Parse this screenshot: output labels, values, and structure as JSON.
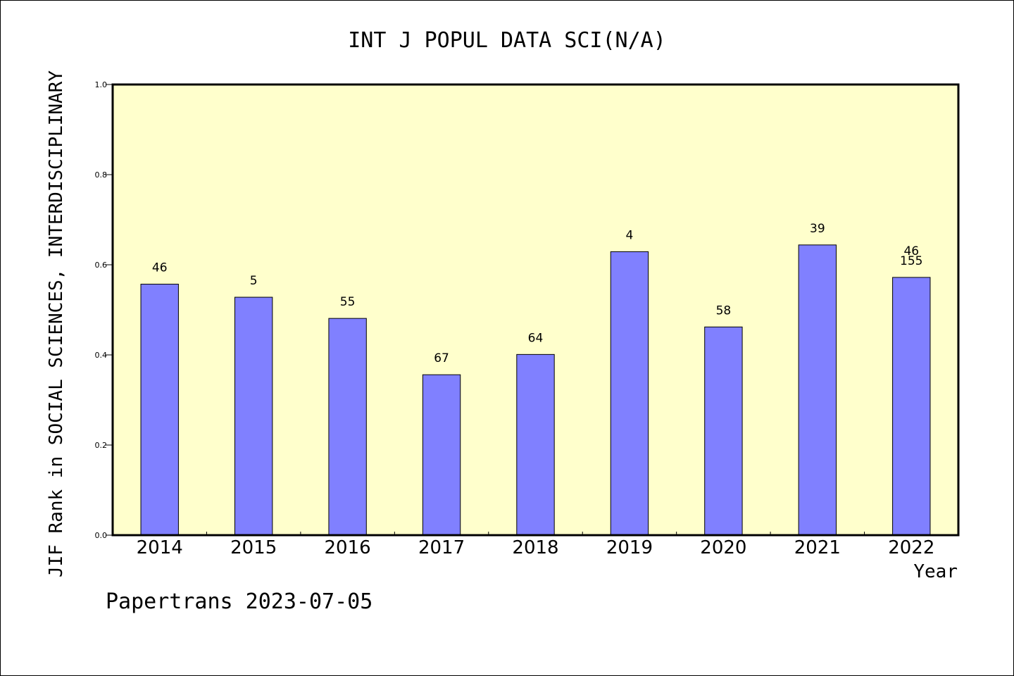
{
  "chart_data": {
    "type": "bar",
    "title": "INT J POPUL DATA SCI(N/A)",
    "xlabel": "Year",
    "ylabel": "JIF Rank in SOCIAL SCIENCES, INTERDISCIPLINARY",
    "categories": [
      "2014",
      "2015",
      "2016",
      "2017",
      "2018",
      "2019",
      "2020",
      "2021",
      "2022"
    ],
    "values": [
      0.557,
      0.528,
      0.481,
      0.356,
      0.401,
      0.629,
      0.462,
      0.644,
      0.572
    ],
    "data_labels": [
      [
        "46"
      ],
      [
        "5"
      ],
      [
        "55"
      ],
      [
        "67"
      ],
      [
        "64"
      ],
      [
        "4"
      ],
      [
        "58"
      ],
      [
        "39"
      ],
      [
        "46",
        "155"
      ]
    ],
    "ylim": [
      0,
      1.0
    ],
    "yticks": [
      "0.0",
      "0.2",
      "0.4",
      "0.6",
      "0.8",
      "1.0"
    ],
    "grid": false,
    "colors": {
      "plot_background": "#ffffcc",
      "bar_fill": "#8080ff",
      "bar_stroke": "#000000",
      "axis": "#000000"
    }
  },
  "footer": {
    "watermark": "Papertrans 2023-07-05"
  }
}
